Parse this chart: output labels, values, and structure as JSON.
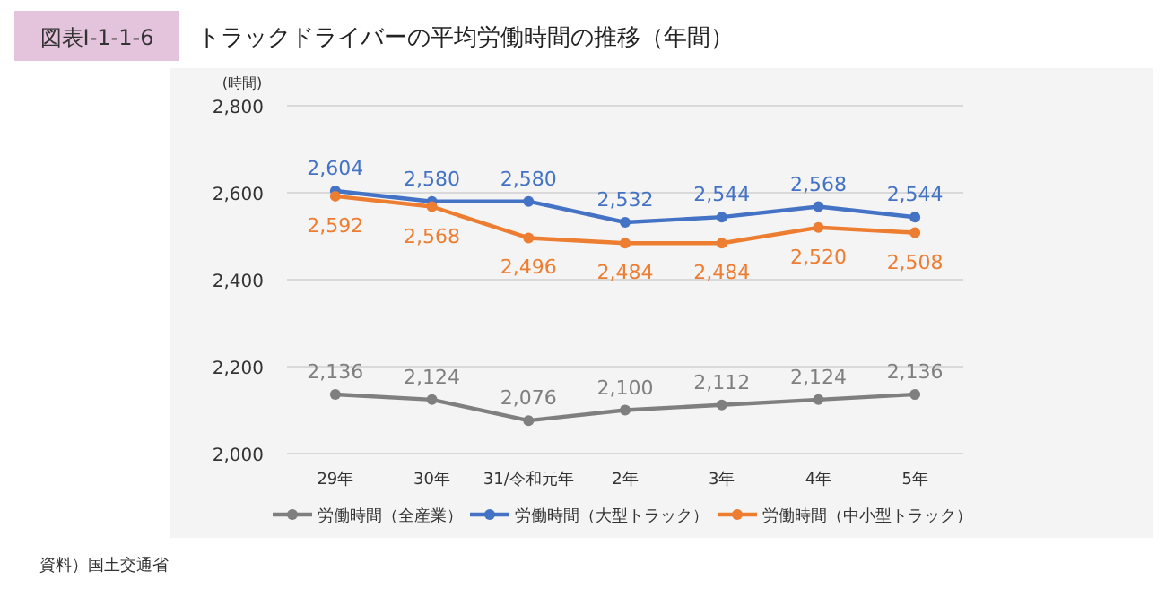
{
  "chart_data": {
    "type": "line",
    "subtitle": "図表Ⅰ-1-1-6",
    "title": "トラックドライバーの平均労働時間の推移（年間）",
    "ylabel": "(時間)",
    "categories": [
      "29年",
      "30年",
      "31/令和元年",
      "2年",
      "3年",
      "4年",
      "5年"
    ],
    "series": [
      {
        "name": "労働時間（全産業）",
        "color": "#7f7f7f",
        "values": [
          2136,
          2124,
          2076,
          2100,
          2112,
          2124,
          2136
        ],
        "value_labels": [
          "2,136",
          "2,124",
          "2,076",
          "2,100",
          "2,112",
          "2,124",
          "2,136"
        ]
      },
      {
        "name": "労働時間（大型トラック）",
        "color": "#4472c4",
        "values": [
          2604,
          2580,
          2580,
          2532,
          2544,
          2568,
          2544
        ],
        "value_labels": [
          "2,604",
          "2,580",
          "2,580",
          "2,532",
          "2,544",
          "2,568",
          "2,544"
        ]
      },
      {
        "name": "労働時間（中小型トラック）",
        "color": "#ed7d31",
        "values": [
          2592,
          2568,
          2496,
          2484,
          2484,
          2520,
          2508
        ],
        "value_labels": [
          "2,592",
          "2,568",
          "2,496",
          "2,484",
          "2,484",
          "2,520",
          "2,508"
        ]
      }
    ],
    "ylim": [
      2000,
      2800
    ],
    "yticks": [
      {
        "value": 2000,
        "label": "2,000"
      },
      {
        "value": 2200,
        "label": "2,200"
      },
      {
        "value": 2400,
        "label": "2,400"
      },
      {
        "value": 2600,
        "label": "2,600"
      },
      {
        "value": 2800,
        "label": "2,800"
      }
    ],
    "grid": "y",
    "legend": "bottom",
    "marker": "circle",
    "line_style": "solid",
    "annotations": [
      "資料）国土交通省"
    ]
  }
}
